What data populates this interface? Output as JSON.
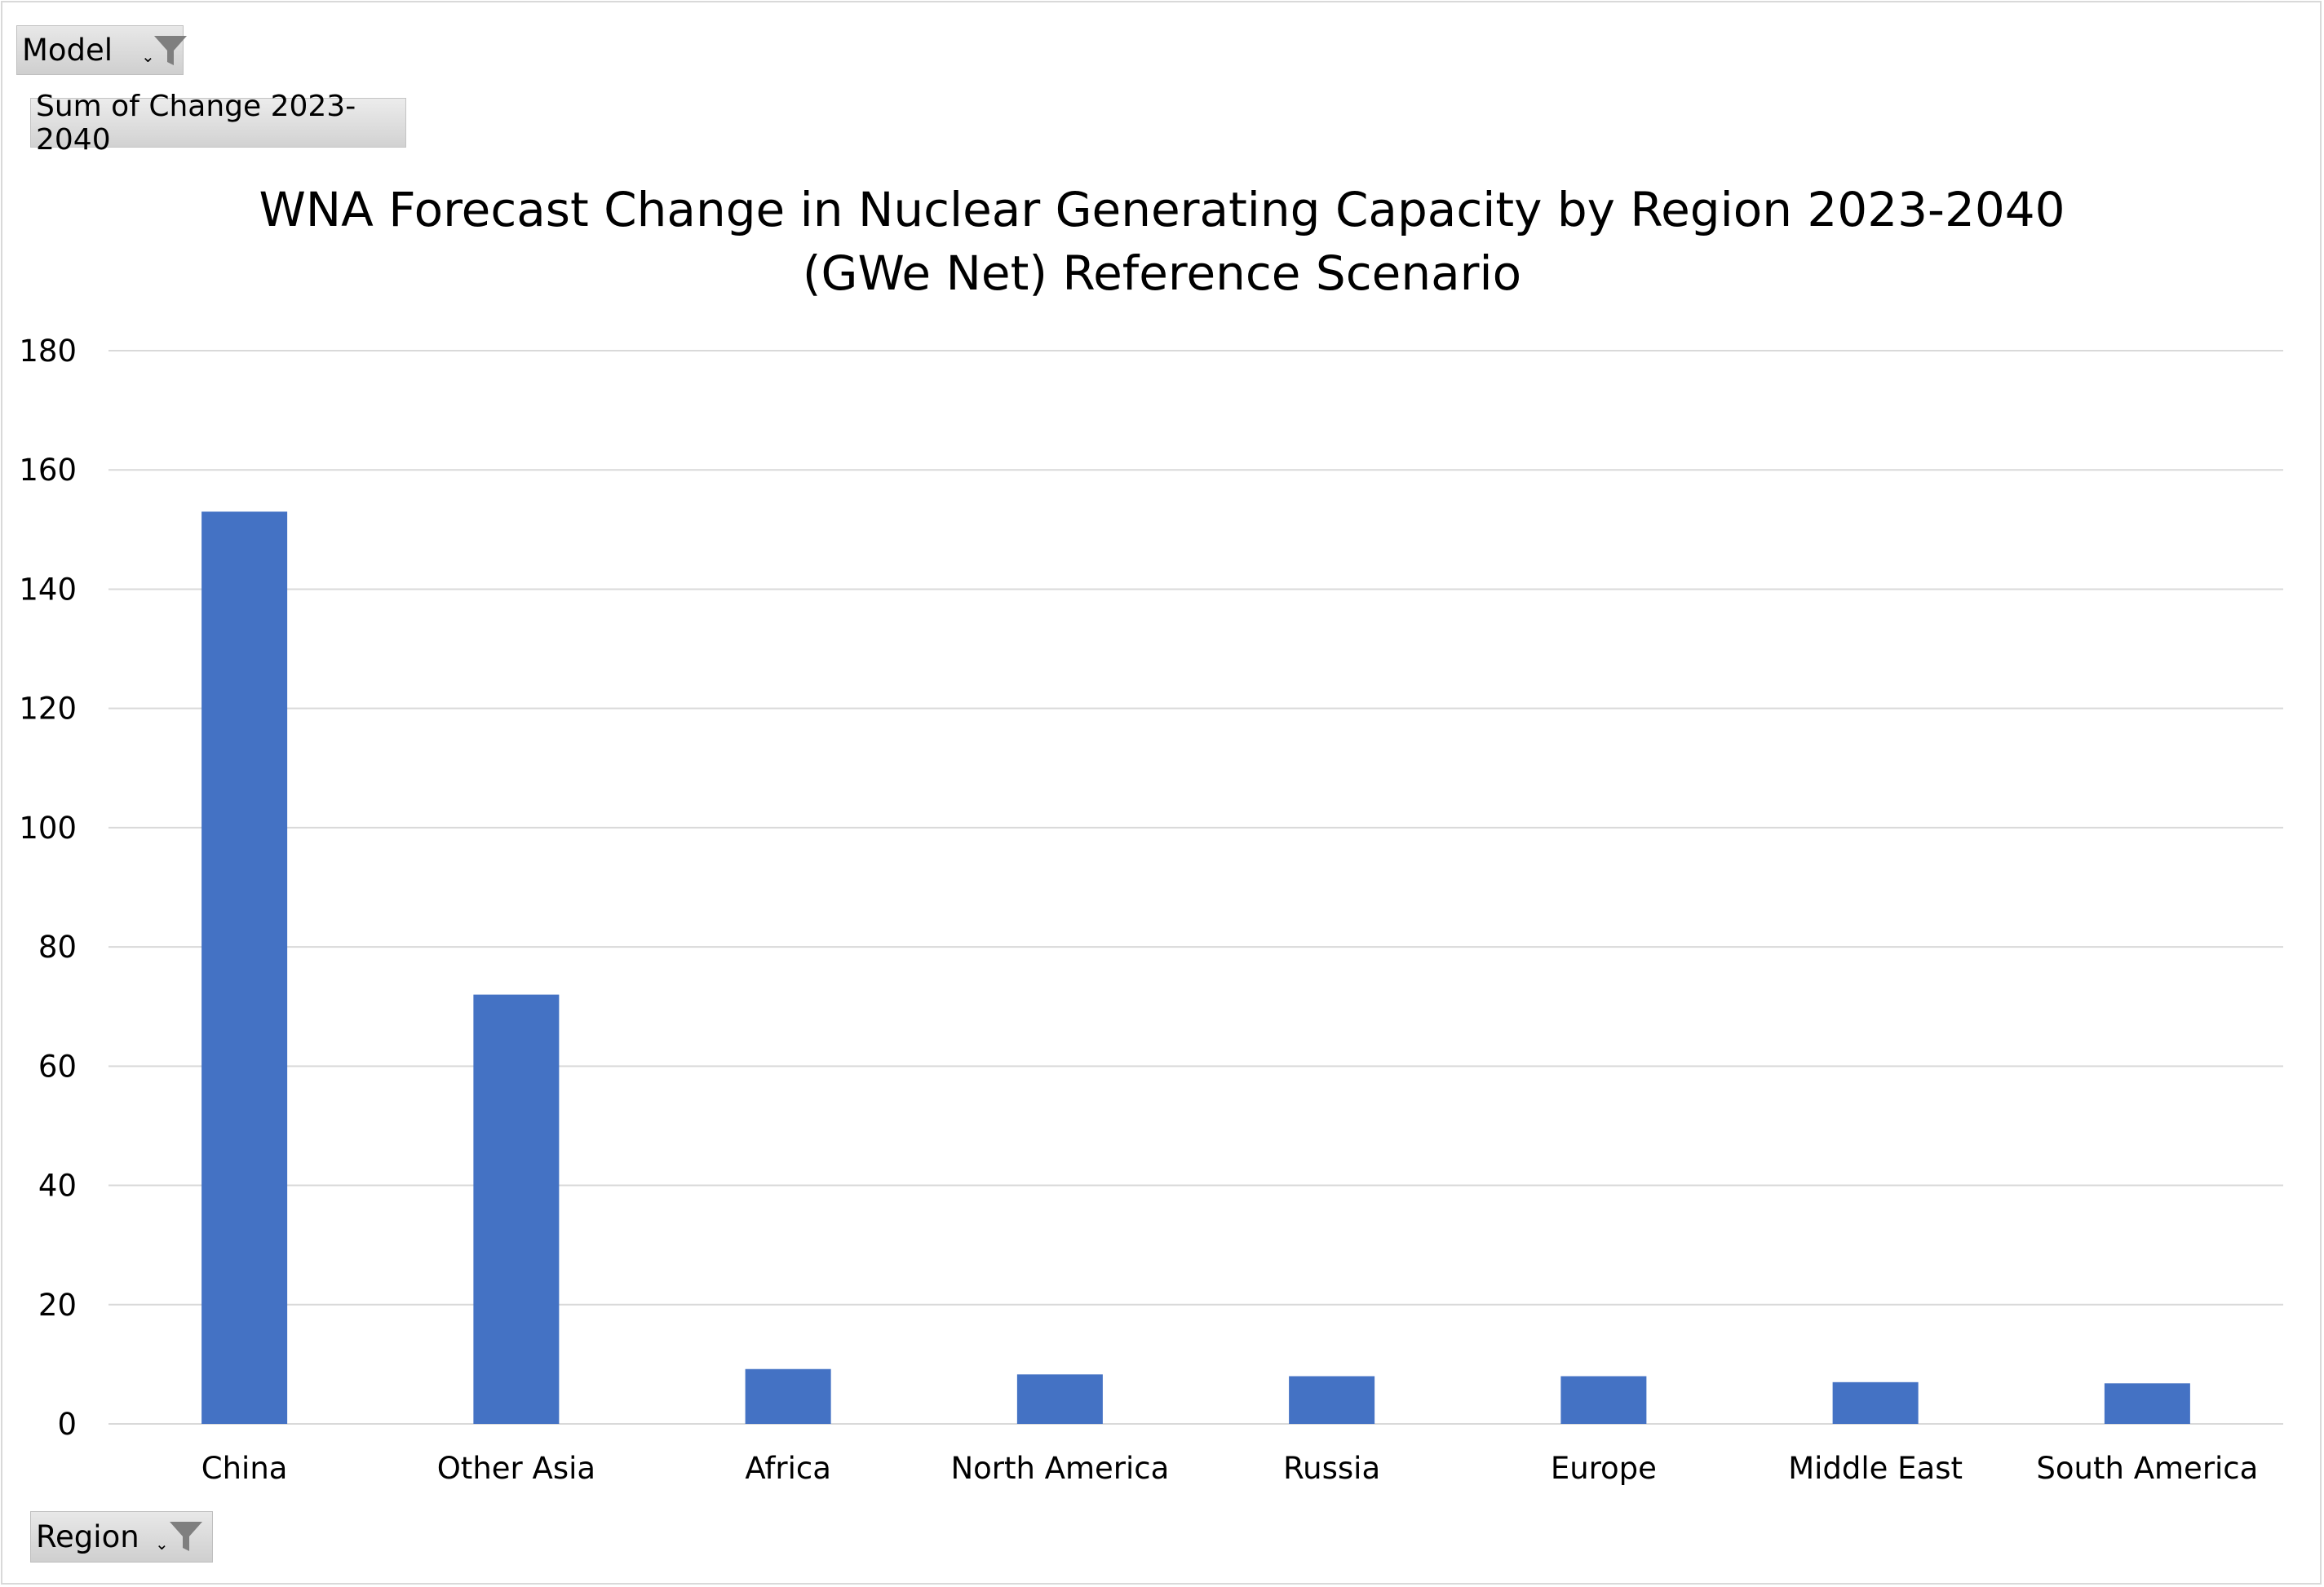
{
  "filters": {
    "model_label": "Model",
    "region_label": "Region",
    "value_field_label": "Sum of Change 2023-2040"
  },
  "chart_data": {
    "type": "bar",
    "title_line1": "WNA Forecast Change in Nuclear Generating Capacity by Region 2023-2040",
    "title_line2": "(GWe Net) Reference Scenario",
    "categories": [
      "China",
      "Other Asia",
      "Africa",
      "North America",
      "Russia",
      "Europe",
      "Middle East",
      "South America"
    ],
    "series": [
      {
        "values": [
          153.0,
          72.0,
          9.2,
          8.3,
          8.0,
          8.0,
          7.0,
          6.8
        ]
      }
    ],
    "ylim": [
      0,
      180
    ],
    "yticks": [
      0,
      20,
      40,
      60,
      80,
      100,
      120,
      140,
      160,
      180
    ],
    "grid": true,
    "bar_color": "#4472C4",
    "grid_color": "#d9d9d9"
  }
}
